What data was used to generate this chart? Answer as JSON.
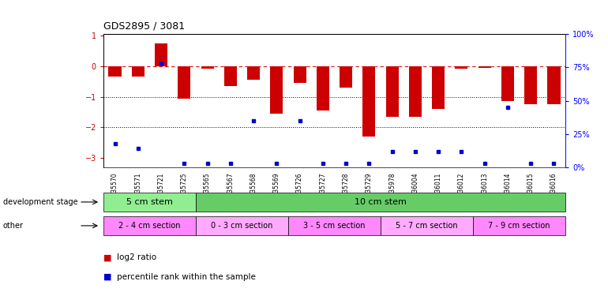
{
  "title": "GDS2895 / 3081",
  "samples": [
    "GSM35570",
    "GSM35571",
    "GSM35721",
    "GSM35725",
    "GSM35565",
    "GSM35567",
    "GSM35568",
    "GSM35569",
    "GSM35726",
    "GSM35727",
    "GSM35728",
    "GSM35729",
    "GSM35978",
    "GSM36004",
    "GSM36011",
    "GSM36012",
    "GSM36013",
    "GSM36014",
    "GSM36015",
    "GSM36016"
  ],
  "log2_ratio": [
    -0.35,
    -0.35,
    0.75,
    -1.05,
    -0.08,
    -0.65,
    -0.45,
    -1.55,
    -0.55,
    -1.45,
    -0.7,
    -2.3,
    -1.65,
    -1.65,
    -1.4,
    -0.08,
    -0.05,
    -1.15,
    -1.25,
    -1.25
  ],
  "pct_rank_vals": [
    18,
    14,
    78,
    3,
    3,
    3,
    35,
    3,
    35,
    3,
    3,
    3,
    12,
    12,
    12,
    12,
    3,
    45,
    3,
    3
  ],
  "dev_stage_groups": [
    {
      "label": "5 cm stem",
      "start": 0,
      "end": 4,
      "color": "#90EE90"
    },
    {
      "label": "10 cm stem",
      "start": 4,
      "end": 20,
      "color": "#66CC66"
    }
  ],
  "other_groups": [
    {
      "label": "2 - 4 cm section",
      "start": 0,
      "end": 4,
      "color": "#FF88FF"
    },
    {
      "label": "0 - 3 cm section",
      "start": 4,
      "end": 8,
      "color": "#FFAAFF"
    },
    {
      "label": "3 - 5 cm section",
      "start": 8,
      "end": 12,
      "color": "#FF88FF"
    },
    {
      "label": "5 - 7 cm section",
      "start": 12,
      "end": 16,
      "color": "#FFAAFF"
    },
    {
      "label": "7 - 9 cm section",
      "start": 16,
      "end": 20,
      "color": "#FF88FF"
    }
  ],
  "bar_color": "#CC0000",
  "dot_color": "#0000CC",
  "ylim_left": [
    -3.3,
    1.05
  ],
  "ylim_right": [
    0,
    100
  ],
  "yticks_left": [
    -3,
    -2,
    -1,
    0,
    1
  ],
  "ytick_right_labels": [
    "0%",
    "25%",
    "50%",
    "75%",
    "100%"
  ],
  "ytick_right_vals": [
    0,
    25,
    50,
    75,
    100
  ]
}
